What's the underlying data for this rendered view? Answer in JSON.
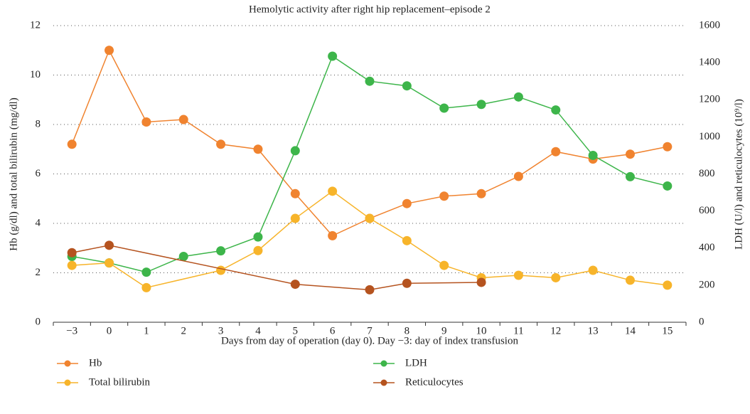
{
  "chart_data": {
    "type": "line",
    "title": "Hemolytic activity after right hip replacement–episode 2",
    "x_label": "Days from day of operation (day 0). Day −3: day of index transfusion",
    "y_label": "Hb (g/dl) and total bilirubin (mg/dl)",
    "y2_label": "LDH (U/l) and reticulocytes (10⁹/l)",
    "categories": [
      "−3",
      "0",
      "1",
      "2",
      "3",
      "4",
      "5",
      "6",
      "7",
      "8",
      "9",
      "10",
      "11",
      "12",
      "13",
      "14",
      "15"
    ],
    "ylim": [
      0,
      12
    ],
    "yticks": [
      0,
      2,
      4,
      6,
      8,
      10,
      12
    ],
    "y2lim": [
      0,
      1600
    ],
    "y2ticks": [
      0,
      200,
      400,
      600,
      800,
      1000,
      1200,
      1400,
      1600
    ],
    "grid": true,
    "connect_gaps": true,
    "legend": "bottom",
    "series": [
      {
        "name": "Hb",
        "color": "#f0832f",
        "values": [
          7.2,
          11,
          8.1,
          8.2,
          7.2,
          7.0,
          5.2,
          3.5,
          4.2,
          4.8,
          5.1,
          5.2,
          5.9,
          6.9,
          6.6,
          6.8,
          7.1
        ]
      },
      {
        "name": "LDH",
        "color": "#3db54a",
        "axis": "y2",
        "values": [
          355,
          320,
          270,
          355,
          385,
          460,
          925,
          1435,
          1300,
          1275,
          1155,
          1175,
          1215,
          1145,
          900,
          785,
          735
        ]
      },
      {
        "name": "Total bilirubin",
        "color": "#f7b42a",
        "values": [
          2.3,
          2.4,
          1.4,
          null,
          2.1,
          2.9,
          4.2,
          5.3,
          4.2,
          3.3,
          2.3,
          1.8,
          1.9,
          1.8,
          2.1,
          1.7,
          1.5
        ]
      },
      {
        "name": "Reticulocytes",
        "color": "#b5531f",
        "axis": "y2",
        "values": [
          375,
          415,
          null,
          null,
          null,
          null,
          205,
          null,
          175,
          210,
          null,
          215,
          null,
          null,
          null,
          null,
          null
        ]
      }
    ]
  }
}
